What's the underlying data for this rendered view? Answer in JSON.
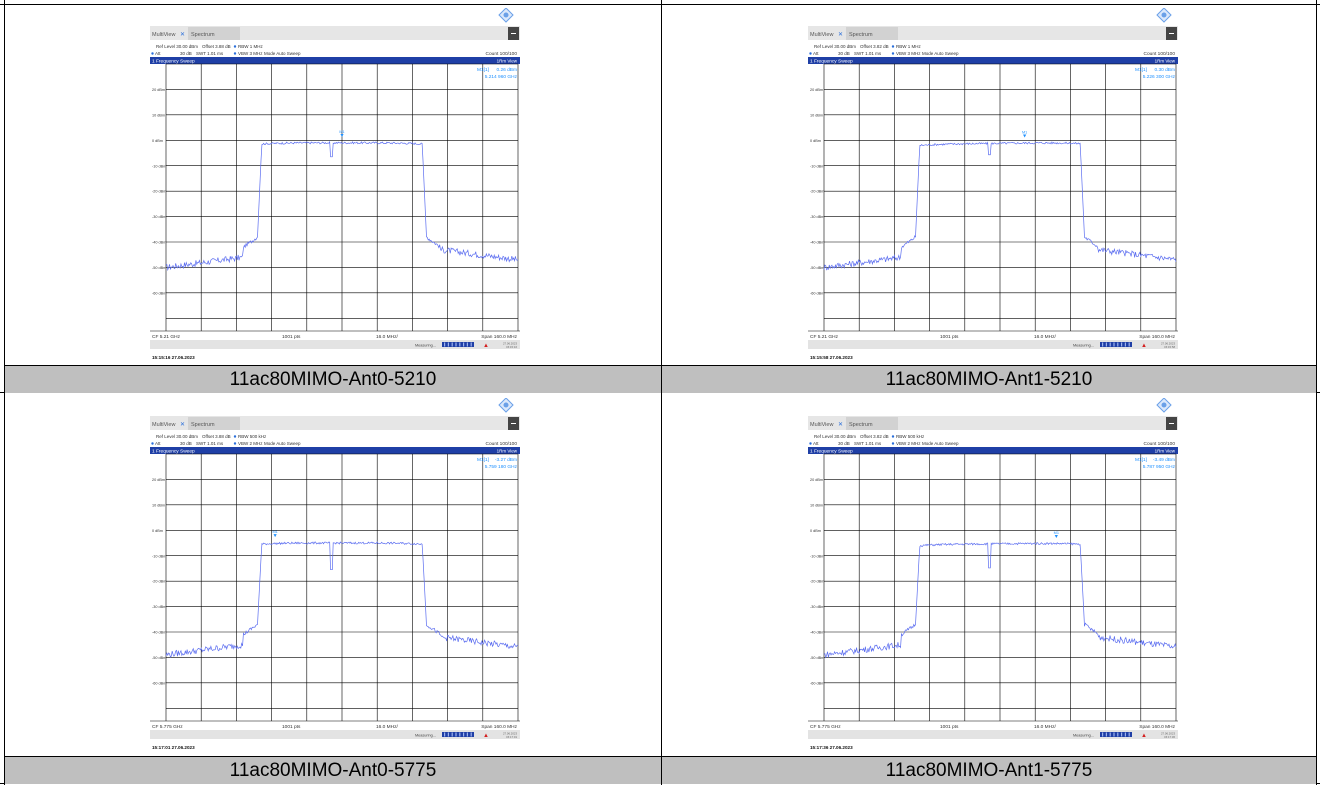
{
  "screens": [
    {
      "caption": "11ac80MIMO-Ant0-5210",
      "tabs": [
        "MultiView",
        "Spectrum"
      ],
      "ref_level": "Ref Level 30.00 dBm",
      "offset": "Offset 3.88 dB",
      "rbw": "RBW 1 MHz",
      "att": "Att",
      "att_val": "30 dB",
      "swt": "SWT 1.01 ms",
      "vbw": "VBW 3 MHz",
      "mode": "Mode Auto Sweep",
      "count": "Count 100/100",
      "sweep_title": "1 Frequency Sweep",
      "view": "1Rm View",
      "marker_label": "M1[1]",
      "marker_level": "0.26 dBm",
      "marker_freq": "5.214 960 GHz",
      "marker_tag": "M1",
      "y_ticks": [
        "20 dBm",
        "10 dBm",
        "0 dBm",
        "-10 dBm",
        "-20 dBm",
        "-30 dBm",
        "-40 dBm",
        "-50 dBm",
        "-60 dBm"
      ],
      "cf": "CF 5.21 GHz",
      "pts": "1001 pts",
      "div": "16.0 MHz/",
      "span": "Span 160.0 MHz",
      "status": "Measuring...",
      "status_date": "27.06.2023",
      "status_time": "15:15:16",
      "timestamp": "15:15:16  27.06.2023",
      "trace_shape": {
        "plateau_db": 0.5,
        "tilt": 0.0,
        "notch_db": -7,
        "noise_floor_db": -46,
        "marker_pos": 0.5
      }
    },
    {
      "caption": "11ac80MIMO-Ant1-5210",
      "tabs": [
        "MultiView",
        "Spectrum"
      ],
      "ref_level": "Ref Level 30.00 dBm",
      "offset": "Offset 3.82 dB",
      "rbw": "RBW 1 MHz",
      "att": "Att",
      "att_val": "30 dB",
      "swt": "SWT 1.01 ms",
      "vbw": "VBW 3 MHz",
      "mode": "Mode Auto Sweep",
      "count": "Count 100/100",
      "sweep_title": "1 Frequency Sweep",
      "view": "1Rm View",
      "marker_label": "M1[1]",
      "marker_level": "0.30 dBm",
      "marker_freq": "5.226 300 GHz",
      "marker_tag": "M1",
      "y_ticks": [
        "20 dBm",
        "10 dBm",
        "0 dBm",
        "-10 dBm",
        "-20 dBm",
        "-30 dBm",
        "-40 dBm",
        "-50 dBm",
        "-60 dBm"
      ],
      "cf": "CF 5.21 GHz",
      "pts": "1001 pts",
      "div": "16.0 MHz/",
      "span": "Span 160.0 MHz",
      "status": "Measuring...",
      "status_date": "27.06.2023",
      "status_time": "15:15:58",
      "timestamp": "15:15:58  27.06.2023",
      "trace_shape": {
        "plateau_db": 0.3,
        "tilt": 0.4,
        "notch_db": -6,
        "noise_floor_db": -46,
        "marker_pos": 0.57
      }
    },
    {
      "caption": "11ac80MIMO-Ant0-5775",
      "tabs": [
        "MultiView",
        "Spectrum"
      ],
      "ref_level": "Ref Level 30.00 dBm",
      "offset": "Offset 3.88 dB",
      "rbw": "RBW 500 kHz",
      "att": "Att",
      "att_val": "30 dB",
      "swt": "SWT 1.01 ms",
      "vbw": "VBW 2 MHz",
      "mode": "Mode Auto Sweep",
      "count": "Count 100/100",
      "sweep_title": "1 Frequency Sweep",
      "view": "1Rm View",
      "marker_label": "M1[1]",
      "marker_level": "-3.27 dBm",
      "marker_freq": "5.759 180 GHz",
      "marker_tag": "M1",
      "y_ticks": [
        "20 dBm",
        "10 dBm",
        "0 dBm",
        "-10 dBm",
        "-20 dBm",
        "-30 dBm",
        "-40 dBm",
        "-50 dBm",
        "-60 dBm"
      ],
      "cf": "CF 5.775 GHz",
      "pts": "1001 pts",
      "div": "16.0 MHz/",
      "span": "Span 160.0 MHz",
      "status": "Measuring...",
      "status_date": "27.06.2023",
      "status_time": "15:17:01",
      "timestamp": "15:17:01  27.06.2023",
      "trace_shape": {
        "plateau_db": -3.5,
        "tilt": 0.0,
        "notch_db": -12,
        "noise_floor_db": -45,
        "marker_pos": 0.31
      }
    },
    {
      "caption": "11ac80MIMO-Ant1-5775",
      "tabs": [
        "MultiView",
        "Spectrum"
      ],
      "ref_level": "Ref Level 30.00 dBm",
      "offset": "Offset 3.82 dB",
      "rbw": "RBW 500 kHz",
      "att": "Att",
      "att_val": "30 dB",
      "swt": "SWT 1.01 ms",
      "vbw": "VBW 2 MHz",
      "mode": "Mode Auto Sweep",
      "count": "Count 100/100",
      "sweep_title": "1 Frequency Sweep",
      "view": "1Rm View",
      "marker_label": "M1[1]",
      "marker_level": "-3.49 dBm",
      "marker_freq": "5.787 950 GHz",
      "marker_tag": "M1",
      "y_ticks": [
        "20 dBm",
        "10 dBm",
        "0 dBm",
        "-10 dBm",
        "-20 dBm",
        "-30 dBm",
        "-40 dBm",
        "-50 dBm",
        "-60 dBm"
      ],
      "cf": "CF 5.775 GHz",
      "pts": "1001 pts",
      "div": "16.0 MHz/",
      "span": "Span 160.0 MHz",
      "status": "Measuring...",
      "status_date": "27.06.2023",
      "status_time": "15:17:36",
      "timestamp": "15:17:36  27.06.2023",
      "trace_shape": {
        "plateau_db": -3.8,
        "tilt": 0.3,
        "notch_db": -11,
        "noise_floor_db": -45,
        "marker_pos": 0.66
      }
    }
  ],
  "colors": {
    "trace": "#5b6df0",
    "header_bar": "#1f3fa6",
    "marker_text": "#1e90ff",
    "caption_bg": "#bfbfbf",
    "grid": "#000000"
  }
}
